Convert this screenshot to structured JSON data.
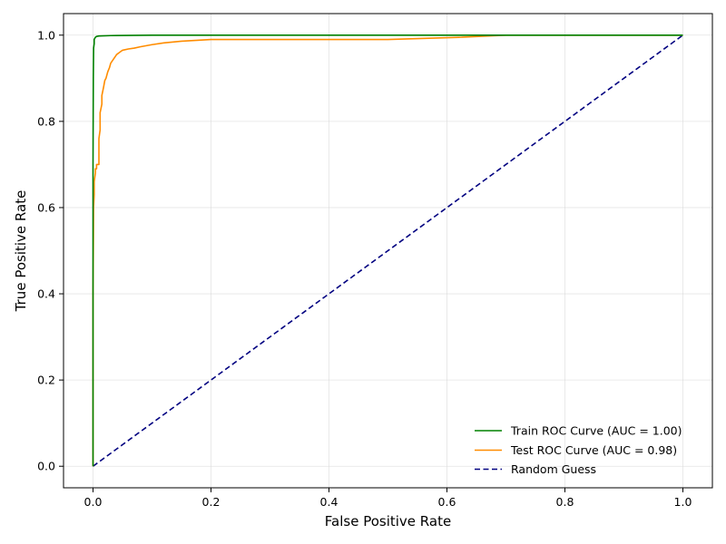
{
  "chart_data": {
    "type": "line",
    "title": "",
    "xlabel": "False Positive Rate",
    "ylabel": "True Positive Rate",
    "xlim": [
      -0.05,
      1.05
    ],
    "ylim": [
      -0.05,
      1.05
    ],
    "grid": true,
    "legend_position": "lower-right",
    "x_ticks": [
      0.0,
      0.2,
      0.4,
      0.6,
      0.8,
      1.0
    ],
    "x_tick_labels": [
      "0.0",
      "0.2",
      "0.4",
      "0.6",
      "0.8",
      "1.0"
    ],
    "y_ticks": [
      0.0,
      0.2,
      0.4,
      0.6,
      0.8,
      1.0
    ],
    "y_tick_labels": [
      "0.0",
      "0.2",
      "0.4",
      "0.6",
      "0.8",
      "1.0"
    ],
    "series": [
      {
        "name": "Train ROC Curve (AUC = 1.00)",
        "color": "#008000",
        "style": "solid",
        "x": [
          0.0,
          0.0,
          0.0,
          0.0005,
          0.001,
          0.002,
          0.002,
          0.004,
          0.006,
          0.01,
          0.03,
          0.1,
          0.3,
          0.6,
          0.82,
          1.0
        ],
        "y": [
          0.0,
          0.41,
          0.7,
          0.9,
          0.97,
          0.98,
          0.99,
          0.995,
          0.997,
          0.998,
          0.999,
          1.0,
          1.0,
          1.0,
          1.0,
          1.0
        ]
      },
      {
        "name": "Test ROC Curve (AUC = 0.98)",
        "color": "#ff8c00",
        "style": "solid",
        "x": [
          0.0,
          0.0,
          0.001,
          0.002,
          0.002,
          0.004,
          0.004,
          0.006,
          0.006,
          0.01,
          0.01,
          0.012,
          0.012,
          0.015,
          0.015,
          0.018,
          0.02,
          0.022,
          0.025,
          0.028,
          0.03,
          0.035,
          0.04,
          0.045,
          0.05,
          0.06,
          0.07,
          0.08,
          0.1,
          0.12,
          0.15,
          0.2,
          0.3,
          0.5,
          0.62,
          0.7,
          0.82,
          1.0
        ],
        "y": [
          0.0,
          0.41,
          0.6,
          0.63,
          0.66,
          0.68,
          0.69,
          0.69,
          0.7,
          0.7,
          0.76,
          0.78,
          0.82,
          0.84,
          0.86,
          0.88,
          0.895,
          0.9,
          0.915,
          0.925,
          0.935,
          0.945,
          0.955,
          0.96,
          0.965,
          0.968,
          0.97,
          0.973,
          0.978,
          0.982,
          0.986,
          0.99,
          0.99,
          0.99,
          0.995,
          1.0,
          1.0,
          1.0
        ]
      },
      {
        "name": "Random Guess",
        "color": "#000080",
        "style": "dashed",
        "x": [
          0.0,
          1.0
        ],
        "y": [
          0.0,
          1.0
        ]
      }
    ]
  }
}
